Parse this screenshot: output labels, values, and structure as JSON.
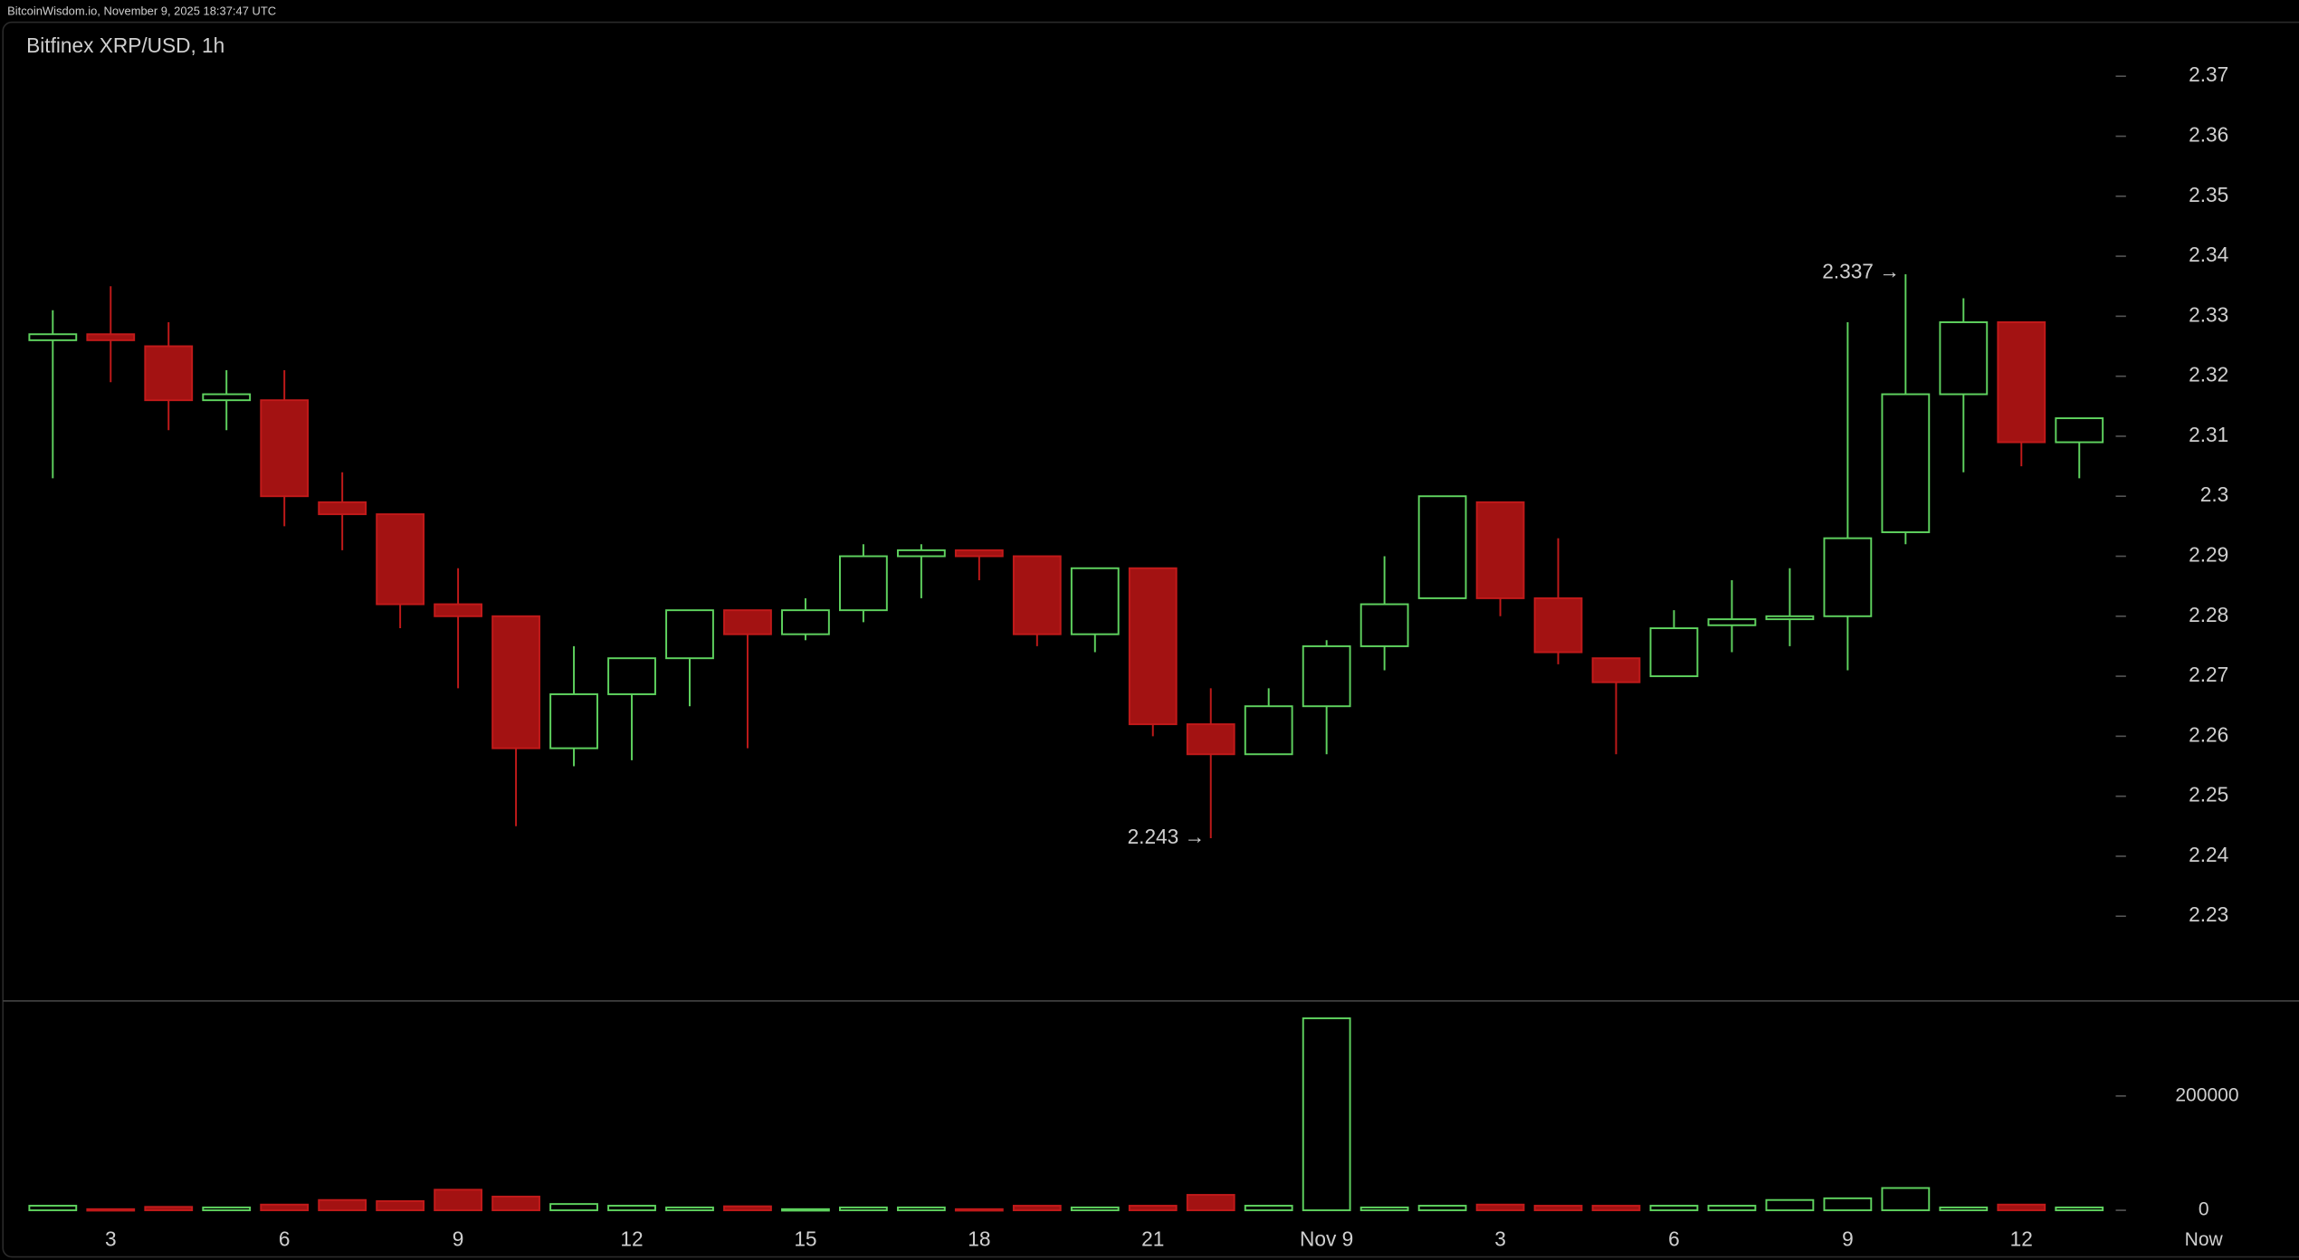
{
  "header": {
    "text": "BitcoinWisdom.io, November 9, 2025 18:37:47 UTC"
  },
  "chart_data": {
    "type": "candlestick",
    "title": "Bitfinex XRP/USD, 1h",
    "categories": [
      null,
      "3",
      null,
      null,
      "6",
      null,
      null,
      "9",
      null,
      null,
      "12",
      null,
      null,
      "15",
      null,
      null,
      "18",
      null,
      null,
      "21",
      null,
      null,
      "Nov 9",
      null,
      null,
      "3",
      null,
      null,
      "6",
      null,
      null,
      "9",
      null,
      null,
      "12",
      null
    ],
    "now_label": "Now",
    "open": [
      2.326,
      2.327,
      2.325,
      2.316,
      2.316,
      2.299,
      2.297,
      2.282,
      2.28,
      2.258,
      2.267,
      2.273,
      2.281,
      2.277,
      2.281,
      2.29,
      2.291,
      2.29,
      2.277,
      2.288,
      2.262,
      2.257,
      2.265,
      2.275,
      2.283,
      2.299,
      2.283,
      2.273,
      2.27,
      2.2785,
      2.2795,
      2.28,
      2.294,
      2.317,
      2.329,
      2.309
    ],
    "high": [
      2.331,
      2.335,
      2.329,
      2.321,
      2.321,
      2.304,
      2.297,
      2.288,
      2.28,
      2.275,
      2.273,
      2.281,
      2.281,
      2.283,
      2.292,
      2.292,
      2.291,
      2.29,
      2.288,
      2.288,
      2.268,
      2.268,
      2.276,
      2.29,
      2.3,
      2.299,
      2.293,
      2.273,
      2.281,
      2.286,
      2.288,
      2.329,
      2.337,
      2.333,
      2.329,
      2.313
    ],
    "low": [
      2.303,
      2.319,
      2.311,
      2.311,
      2.295,
      2.291,
      2.278,
      2.268,
      2.245,
      2.255,
      2.256,
      2.265,
      2.258,
      2.276,
      2.279,
      2.283,
      2.286,
      2.275,
      2.274,
      2.26,
      2.243,
      2.257,
      2.257,
      2.271,
      2.283,
      2.28,
      2.272,
      2.257,
      2.27,
      2.274,
      2.275,
      2.271,
      2.292,
      2.304,
      2.305,
      2.303
    ],
    "close": [
      2.327,
      2.326,
      2.316,
      2.317,
      2.3,
      2.297,
      2.282,
      2.28,
      2.258,
      2.267,
      2.273,
      2.281,
      2.277,
      2.281,
      2.29,
      2.291,
      2.29,
      2.277,
      2.288,
      2.262,
      2.257,
      2.265,
      2.275,
      2.282,
      2.3,
      2.283,
      2.274,
      2.269,
      2.278,
      2.2795,
      2.28,
      2.293,
      2.317,
      2.329,
      2.309,
      2.313
    ],
    "volume": [
      8000,
      2000,
      6000,
      5000,
      10000,
      18000,
      16000,
      36000,
      24000,
      11000,
      8000,
      5000,
      7000,
      2000,
      5000,
      5000,
      2000,
      8000,
      5000,
      8000,
      27000,
      8000,
      336000,
      5000,
      8000,
      10000,
      8000,
      8000,
      8000,
      8000,
      18000,
      21000,
      39000,
      5000,
      10000,
      5000
    ],
    "up_color": "#5fd35f",
    "down_color": "#a31212",
    "ylim": [
      2.216,
      2.379
    ],
    "yticks": [
      2.23,
      2.24,
      2.25,
      2.26,
      2.27,
      2.28,
      2.29,
      2.3,
      2.31,
      2.32,
      2.33,
      2.34,
      2.35,
      2.36,
      2.37
    ],
    "volume_ylim": [
      -25000,
      365000
    ],
    "volume_yticks": [
      0,
      200000
    ],
    "annotations": [
      {
        "text": "2.337 →",
        "value": 2.337,
        "at": "high"
      },
      {
        "text": "2.243 →",
        "value": 2.243,
        "at": "low"
      }
    ]
  }
}
